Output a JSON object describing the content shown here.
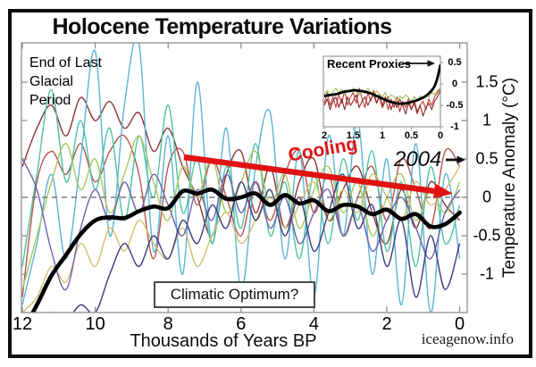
{
  "page": {
    "title": "Holocene Temperature Variations",
    "watermark": "iceagenow.info"
  },
  "annotations": {
    "end_glacial_lines": [
      "End of Last",
      "Glacial",
      "Period"
    ],
    "cooling": "Cooling",
    "year_label": "2004",
    "climatic_optimum": "Climatic Optimum?",
    "recent_proxies": "Recent Proxies"
  },
  "colors": {
    "accent_red": "#e01212",
    "axis_gray": "#8f8f8f",
    "zero_dash_gray": "#787878",
    "frame_black": "#0d0d0d"
  },
  "chart_data": {
    "type": "line",
    "title": "Holocene Temperature Variations",
    "xlabel": "Thousands of Years BP",
    "ylabel": "Temperature Anomaly (°C)",
    "x_ticks": [
      12,
      10,
      8,
      6,
      4,
      2,
      0
    ],
    "y_ticks": [
      1.5,
      1,
      0.5,
      0,
      -0.5,
      -1
    ],
    "xlim": [
      12,
      0
    ],
    "ylim": [
      -1.5,
      2.0
    ],
    "x_axis_reversed": true,
    "zero_line_dashed": true,
    "x_start_ka": 12.0,
    "x_step_ka": 0.4,
    "series": [
      {
        "name": "proxy-darkred",
        "color": "#8c3535",
        "width": 1.4,
        "values": [
          0.4,
          0.9,
          1.2,
          0.8,
          1.3,
          1.0,
          1.25,
          0.9,
          1.1,
          0.6,
          0.9,
          0.4,
          0.0,
          -0.5,
          0.3,
          0.6,
          -0.2,
          0.4,
          -0.4,
          0.2,
          0.5,
          -0.3,
          0.1,
          0.4,
          -0.2,
          -0.6,
          0.1,
          -0.4,
          0.2,
          -0.1,
          -0.3
        ]
      },
      {
        "name": "proxy-red",
        "color": "#b85450",
        "width": 1.4,
        "values": [
          -1.3,
          0.2,
          0.6,
          0.3,
          0.7,
          0.2,
          0.6,
          0.8,
          0.3,
          -0.8,
          0.4,
          0.6,
          -0.1,
          0.5,
          0.0,
          -0.5,
          0.2,
          -0.3,
          0.3,
          0.6,
          -0.2,
          0.3,
          -0.5,
          0.0,
          0.4,
          -0.3,
          0.5,
          0.1,
          -0.4,
          0.6,
          0.4
        ]
      },
      {
        "name": "proxy-cyan",
        "color": "#5ab4d6",
        "width": 1.4,
        "values": [
          -1.4,
          -0.6,
          0.3,
          -0.8,
          0.5,
          1.9,
          -0.5,
          1.2,
          2.0,
          -0.7,
          0.8,
          -1.0,
          1.5,
          -0.6,
          0.9,
          -1.2,
          0.4,
          1.1,
          -0.8,
          0.6,
          -1.3,
          0.8,
          -0.5,
          1.0,
          -1.0,
          0.5,
          -1.4,
          0.7,
          -1.5,
          0.3,
          -0.8
        ]
      },
      {
        "name": "proxy-teal",
        "color": "#4cc3a3",
        "width": 1.4,
        "values": [
          -0.9,
          0.3,
          1.4,
          0.2,
          1.0,
          0.1,
          0.9,
          -0.3,
          0.8,
          0.0,
          1.2,
          -0.2,
          0.5,
          -0.6,
          0.4,
          -0.4,
          0.7,
          -0.5,
          0.2,
          -0.8,
          0.3,
          -0.6,
          0.5,
          -0.3,
          0.6,
          -0.7,
          0.2,
          -0.9,
          0.4,
          -0.6,
          -0.1
        ]
      },
      {
        "name": "proxy-green",
        "color": "#a6c95e",
        "width": 1.4,
        "values": [
          -1.2,
          -0.5,
          0.2,
          0.7,
          0.1,
          0.5,
          -0.2,
          0.3,
          0.8,
          0.2,
          -0.3,
          0.4,
          0.0,
          0.5,
          -0.2,
          0.2,
          0.6,
          -0.1,
          0.3,
          -0.4,
          0.1,
          0.4,
          -0.2,
          0.2,
          -0.5,
          0.0,
          0.3,
          -0.3,
          0.1,
          -0.2,
          0.2
        ]
      },
      {
        "name": "proxy-yellow",
        "color": "#d4bf6e",
        "width": 1.4,
        "values": [
          -1.5,
          -1.3,
          -0.9,
          -1.1,
          -0.6,
          -0.9,
          -0.4,
          -0.7,
          -0.3,
          -0.6,
          -0.8,
          -0.4,
          -0.9,
          -0.5,
          -0.2,
          -0.6,
          -0.3,
          0.0,
          -0.4,
          -0.1,
          0.2,
          -0.3,
          0.1,
          -0.2,
          0.3,
          0.0,
          -0.3,
          0.2,
          -0.1,
          0.1,
          0.4
        ]
      },
      {
        "name": "proxy-slate",
        "color": "#6e62b0",
        "width": 1.4,
        "values": [
          0.5,
          0.1,
          -0.7,
          -1.2,
          -0.4,
          0.1,
          -0.3,
          0.2,
          -0.2,
          0.3,
          -0.1,
          -0.5,
          0.1,
          -0.3,
          0.3,
          -0.2,
          0.2,
          -0.4,
          0.0,
          -0.6,
          -0.2,
          0.1,
          -0.5,
          -0.1,
          -0.7,
          -0.3,
          0.0,
          -0.4,
          -0.8,
          -0.2,
          0.1
        ]
      },
      {
        "name": "proxy-navy",
        "color": "#3a3a80",
        "width": 1.4,
        "values": [
          -1.6,
          -1.6,
          -1.5,
          -1.6,
          -1.4,
          -1.5,
          -1.0,
          -0.6,
          -0.9,
          -0.5,
          -0.8,
          -0.3,
          -0.6,
          -0.1,
          -0.4,
          0.2,
          -0.3,
          0.1,
          -0.5,
          0.0,
          -0.7,
          -0.2,
          0.3,
          -0.4,
          -0.1,
          -0.9,
          -0.3,
          -1.3,
          -0.5,
          -1.2,
          -0.6
        ]
      },
      {
        "name": "average",
        "color": "#000000",
        "width": 4.6,
        "values": [
          -1.75,
          -1.4,
          -1.02,
          -0.75,
          -0.48,
          -0.3,
          -0.26,
          -0.27,
          -0.18,
          -0.12,
          -0.14,
          0.08,
          0.05,
          0.1,
          -0.02,
          0.0,
          0.05,
          -0.1,
          0.03,
          -0.08,
          -0.04,
          -0.18,
          -0.1,
          -0.12,
          -0.22,
          -0.16,
          -0.28,
          -0.22,
          -0.38,
          -0.35,
          -0.2
        ]
      }
    ],
    "inset": {
      "label": "Recent Proxies",
      "x_ticks": [
        2,
        1.5,
        1,
        0.5,
        0
      ],
      "y_ticks": [
        0.5,
        0,
        -0.5,
        -1
      ],
      "xlim": [
        2,
        0
      ],
      "ylim": [
        -1.0,
        0.65
      ],
      "x_start_ka": 2.0,
      "x_step_ka": 0.05,
      "series": [
        {
          "name": "inset-red",
          "color": "#c43b33",
          "width": 1.1,
          "jagged": true,
          "values": [
            -0.45,
            -0.2,
            -0.5,
            -0.3,
            -0.55,
            -0.25,
            -0.45,
            -0.15,
            -0.5,
            -0.3,
            -0.2,
            -0.45,
            -0.1,
            -0.35,
            -0.55,
            -0.2,
            -0.4,
            -0.15,
            -0.45,
            -0.25,
            -0.5,
            -0.3,
            -0.6,
            -0.35,
            -0.55,
            -0.3,
            -0.65,
            -0.4,
            -0.55,
            -0.35,
            -0.6,
            -0.45,
            -0.7,
            -0.5,
            -0.4,
            -0.6,
            -0.35,
            -0.5,
            -0.3,
            -0.2,
            -0.1
          ]
        },
        {
          "name": "inset-darkred",
          "color": "#8a2a28",
          "width": 1.1,
          "jagged": true,
          "values": [
            -0.5,
            -0.35,
            -0.6,
            -0.4,
            -0.3,
            -0.55,
            -0.35,
            -0.6,
            -0.3,
            -0.5,
            -0.4,
            -0.25,
            -0.55,
            -0.4,
            -0.3,
            -0.5,
            -0.35,
            -0.25,
            -0.45,
            -0.3,
            -0.55,
            -0.4,
            -0.3,
            -0.6,
            -0.4,
            -0.55,
            -0.35,
            -0.5,
            -0.7,
            -0.45,
            -0.6,
            -0.4,
            -0.65,
            -0.5,
            -0.75,
            -0.55,
            -0.45,
            -0.6,
            -0.4,
            -0.3,
            -0.15
          ]
        },
        {
          "name": "inset-green",
          "color": "#9dc25a",
          "width": 1.1,
          "jagged": true,
          "values": [
            -0.25,
            -0.15,
            -0.28,
            -0.18,
            -0.1,
            -0.22,
            -0.12,
            -0.25,
            -0.15,
            -0.2,
            -0.1,
            -0.18,
            -0.26,
            -0.14,
            -0.22,
            -0.1,
            -0.2,
            -0.3,
            -0.16,
            -0.24,
            -0.3,
            -0.2,
            -0.35,
            -0.25,
            -0.3,
            -0.38,
            -0.28,
            -0.35,
            -0.25,
            -0.32,
            -0.4,
            -0.3,
            -0.38,
            -0.28,
            -0.35,
            -0.25,
            -0.3,
            -0.2,
            -0.25,
            -0.15,
            -0.1
          ]
        },
        {
          "name": "inset-average",
          "color": "#000000",
          "width": 2.8,
          "values": [
            -0.28,
            -0.27,
            -0.26,
            -0.25,
            -0.24,
            -0.22,
            -0.2,
            -0.18,
            -0.17,
            -0.16,
            -0.15,
            -0.15,
            -0.16,
            -0.17,
            -0.18,
            -0.2,
            -0.22,
            -0.25,
            -0.28,
            -0.31,
            -0.34,
            -0.37,
            -0.4,
            -0.42,
            -0.44,
            -0.45,
            -0.46,
            -0.46,
            -0.45,
            -0.44,
            -0.42,
            -0.4,
            -0.38,
            -0.35,
            -0.32,
            -0.28,
            -0.22,
            -0.15,
            -0.05,
            0.15,
            0.45
          ]
        }
      ]
    }
  }
}
